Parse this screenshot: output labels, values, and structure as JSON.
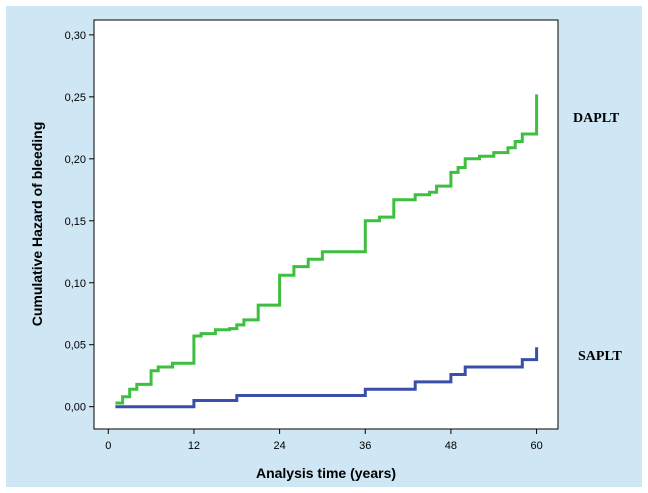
{
  "colors": {
    "background": "#cfe6f5",
    "plot_area": "#ffffff",
    "daplt": "#3fbf3f",
    "saplt": "#3a4fa8"
  },
  "chart_data": {
    "type": "line",
    "step": true,
    "xlabel": "Analysis time (years)",
    "ylabel": "Cumulative Hazard of bleeding",
    "xlim": [
      -2,
      63
    ],
    "ylim": [
      -0.018,
      0.312
    ],
    "x_ticks": [
      0,
      12,
      24,
      36,
      48,
      60
    ],
    "y_ticks": [
      0.0,
      0.05,
      0.1,
      0.15,
      0.2,
      0.25,
      0.3
    ],
    "y_tick_labels": [
      "0,00",
      "0,05",
      "0,10",
      "0,15",
      "0,20",
      "0,25",
      "0,30"
    ],
    "grid": false,
    "series": [
      {
        "name": "DAPLT",
        "color": "#3fbf3f",
        "x": [
          1,
          2,
          3,
          4,
          6,
          7,
          9,
          12,
          13,
          15,
          17,
          18,
          19,
          21,
          24,
          26,
          28,
          30,
          36,
          38,
          40,
          43,
          45,
          46,
          48,
          49,
          50,
          52,
          54,
          56,
          57,
          58,
          60,
          60
        ],
        "y": [
          0.003,
          0.008,
          0.014,
          0.018,
          0.029,
          0.032,
          0.035,
          0.057,
          0.059,
          0.062,
          0.063,
          0.066,
          0.07,
          0.082,
          0.106,
          0.113,
          0.119,
          0.125,
          0.15,
          0.153,
          0.167,
          0.171,
          0.173,
          0.178,
          0.189,
          0.193,
          0.2,
          0.202,
          0.205,
          0.209,
          0.214,
          0.22,
          0.22,
          0.252
        ]
      },
      {
        "name": "SAPLT",
        "color": "#3a4fa8",
        "x": [
          1,
          12,
          18,
          36,
          43,
          48,
          50,
          58,
          60,
          60
        ],
        "y": [
          0.0,
          0.005,
          0.009,
          0.014,
          0.02,
          0.026,
          0.032,
          0.038,
          0.038,
          0.048
        ]
      }
    ],
    "end_labels": [
      "DAPLT",
      "SAPLT"
    ]
  }
}
